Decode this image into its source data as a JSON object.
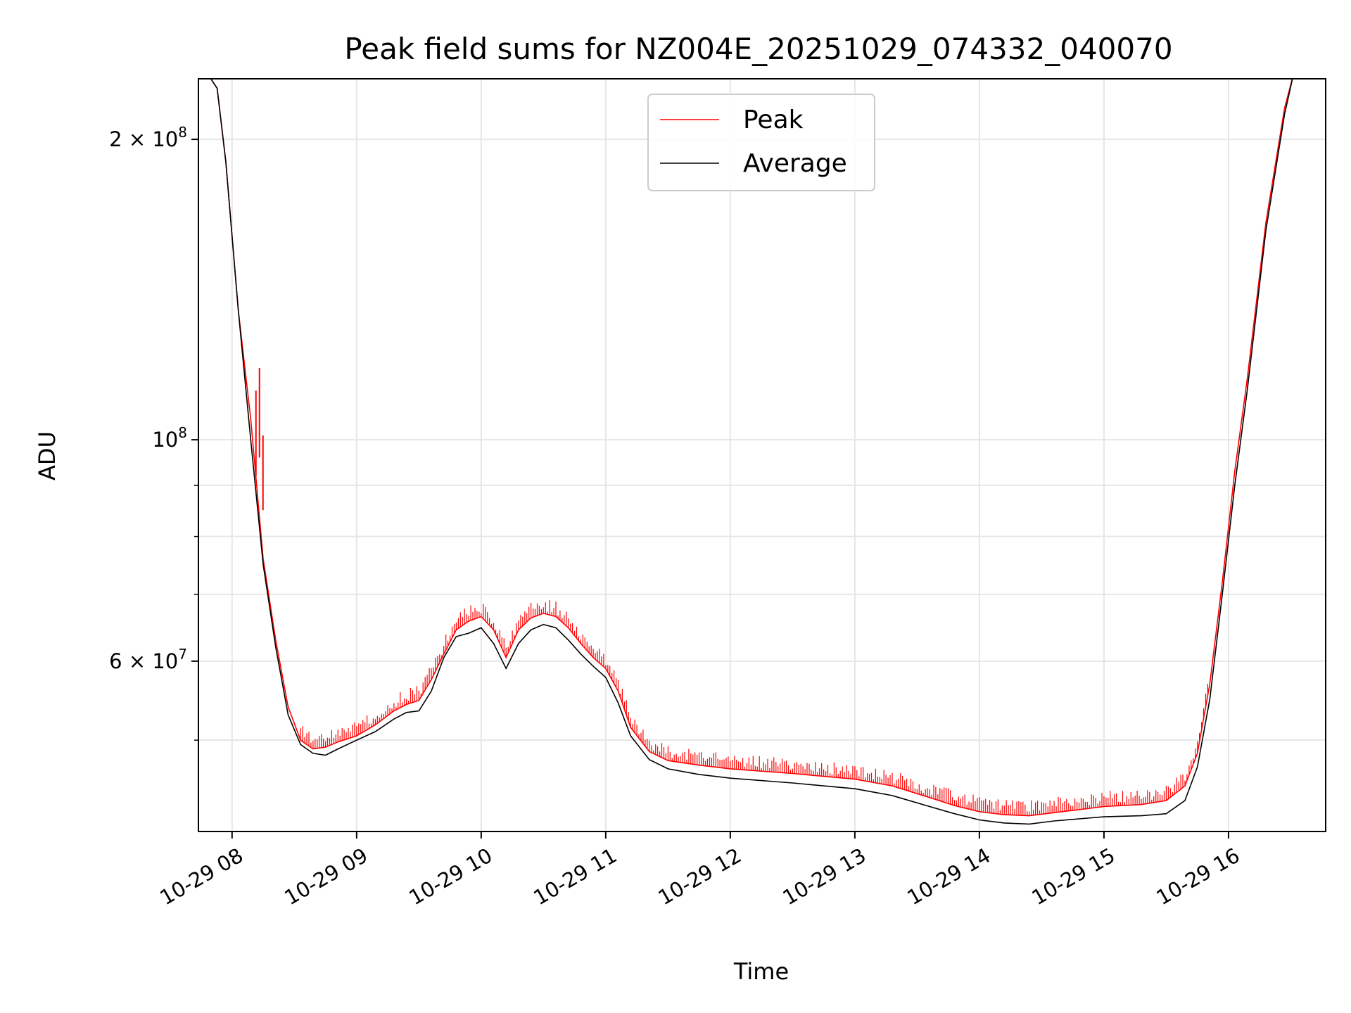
{
  "chart_data": {
    "type": "line",
    "title": "Peak field sums for NZ004E_20251029_074332_040070",
    "xlabel": "Time",
    "ylabel": "ADU",
    "yscale": "log",
    "ylim": [
      40500000,
      230000000
    ],
    "xlim_hours": [
      7.73,
      16.78
    ],
    "grid": true,
    "legend_position": "top-center",
    "x_ticks": [
      {
        "hour": 8,
        "label": "10-29 08"
      },
      {
        "hour": 9,
        "label": "10-29 09"
      },
      {
        "hour": 10,
        "label": "10-29 10"
      },
      {
        "hour": 11,
        "label": "10-29 11"
      },
      {
        "hour": 12,
        "label": "10-29 12"
      },
      {
        "hour": 13,
        "label": "10-29 13"
      },
      {
        "hour": 14,
        "label": "10-29 14"
      },
      {
        "hour": 15,
        "label": "10-29 15"
      },
      {
        "hour": 16,
        "label": "10-29 16"
      }
    ],
    "y_major_ticks": [
      {
        "value": 60000000,
        "mantissa": "6",
        "exponent": "7"
      },
      {
        "value": 100000000,
        "mantissa": "",
        "exponent": "8"
      },
      {
        "value": 200000000,
        "mantissa": "2",
        "exponent": "8"
      }
    ],
    "y_minor_ticks": [
      50000000,
      70000000,
      80000000,
      90000000
    ],
    "series": [
      {
        "name": "Peak",
        "color": "#ff0000",
        "x_hours": [
          7.78,
          7.88,
          7.95,
          8.05,
          8.15,
          8.25,
          8.35,
          8.45,
          8.55,
          8.65,
          8.75,
          8.85,
          9.0,
          9.15,
          9.3,
          9.4,
          9.5,
          9.6,
          9.7,
          9.8,
          9.9,
          10.0,
          10.1,
          10.2,
          10.3,
          10.4,
          10.5,
          10.6,
          10.7,
          10.8,
          10.9,
          11.0,
          11.1,
          11.2,
          11.35,
          11.5,
          11.75,
          12.0,
          12.5,
          13.0,
          13.3,
          13.6,
          13.8,
          14.0,
          14.2,
          14.4,
          14.6,
          14.8,
          15.0,
          15.3,
          15.5,
          15.65,
          15.75,
          15.85,
          15.95,
          16.05,
          16.15,
          16.3,
          16.45,
          16.52
        ],
        "values": [
          235000000,
          225000000,
          190000000,
          135000000,
          105000000,
          76000000,
          63000000,
          54000000,
          50000000,
          49000000,
          49200000,
          49800000,
          50500000,
          51800000,
          53500000,
          54300000,
          54800000,
          57500000,
          61000000,
          64500000,
          65800000,
          66500000,
          64500000,
          60500000,
          64500000,
          66300000,
          67000000,
          66500000,
          64800000,
          62500000,
          60500000,
          59000000,
          56000000,
          51500000,
          48700000,
          47700000,
          47200000,
          46800000,
          46300000,
          45700000,
          45000000,
          43800000,
          43000000,
          42400000,
          42100000,
          42000000,
          42300000,
          42600000,
          42900000,
          43100000,
          43500000,
          45000000,
          48500000,
          57000000,
          72000000,
          93000000,
          115000000,
          165000000,
          215000000,
          232000000
        ]
      },
      {
        "name": "Average",
        "color": "#000000",
        "x_hours": [
          7.78,
          7.88,
          7.95,
          8.05,
          8.15,
          8.25,
          8.35,
          8.45,
          8.55,
          8.65,
          8.75,
          8.85,
          9.0,
          9.15,
          9.3,
          9.4,
          9.5,
          9.6,
          9.7,
          9.8,
          9.9,
          10.0,
          10.1,
          10.2,
          10.3,
          10.4,
          10.5,
          10.6,
          10.7,
          10.8,
          10.9,
          11.0,
          11.1,
          11.2,
          11.35,
          11.5,
          11.75,
          12.0,
          12.5,
          13.0,
          13.3,
          13.6,
          13.8,
          14.0,
          14.2,
          14.4,
          14.6,
          14.8,
          15.0,
          15.3,
          15.5,
          15.65,
          15.75,
          15.85,
          15.95,
          16.05,
          16.15,
          16.3,
          16.45,
          16.52
        ],
        "values": [
          235000000,
          225000000,
          190000000,
          135000000,
          100000000,
          75000000,
          62000000,
          53000000,
          49500000,
          48500000,
          48300000,
          49000000,
          50000000,
          51000000,
          52500000,
          53300000,
          53500000,
          56000000,
          60500000,
          63500000,
          64000000,
          64800000,
          62500000,
          59000000,
          62500000,
          64500000,
          65300000,
          64800000,
          63000000,
          61000000,
          59300000,
          57800000,
          54500000,
          50500000,
          47800000,
          46800000,
          46200000,
          45800000,
          45300000,
          44700000,
          44000000,
          42900000,
          42200000,
          41600000,
          41300000,
          41200000,
          41500000,
          41700000,
          41900000,
          42000000,
          42200000,
          43500000,
          47000000,
          55000000,
          70000000,
          90000000,
          112000000,
          162000000,
          212000000,
          232000000
        ]
      }
    ]
  }
}
